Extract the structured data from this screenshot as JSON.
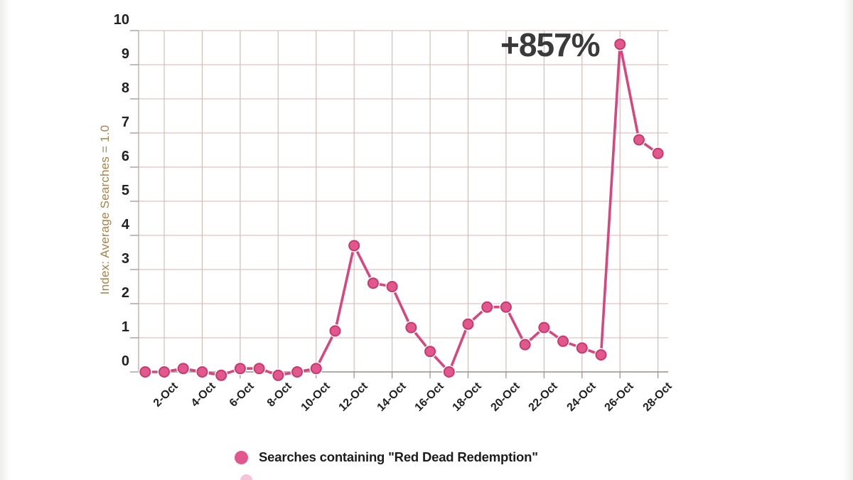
{
  "page": {
    "background": "#ffffff"
  },
  "chart_data": {
    "type": "line",
    "title": "",
    "xlabel": "",
    "ylabel": "Index: Average Searches = 1.0",
    "ylim": [
      0,
      10
    ],
    "yticks": [
      0,
      1,
      2,
      3,
      4,
      5,
      6,
      7,
      8,
      9,
      10
    ],
    "grid": true,
    "legend_position": "bottom",
    "x": [
      "1-Oct",
      "2-Oct",
      "3-Oct",
      "4-Oct",
      "5-Oct",
      "6-Oct",
      "7-Oct",
      "8-Oct",
      "9-Oct",
      "10-Oct",
      "11-Oct",
      "12-Oct",
      "13-Oct",
      "14-Oct",
      "15-Oct",
      "16-Oct",
      "17-Oct",
      "18-Oct",
      "19-Oct",
      "20-Oct",
      "21-Oct",
      "22-Oct",
      "23-Oct",
      "24-Oct",
      "25-Oct",
      "26-Oct",
      "27-Oct",
      "28-Oct"
    ],
    "xtick_labels": [
      "2-Oct",
      "4-Oct",
      "6-Oct",
      "8-Oct",
      "10-Oct",
      "12-Oct",
      "14-Oct",
      "16-Oct",
      "18-Oct",
      "20-Oct",
      "22-Oct",
      "24-Oct",
      "26-Oct",
      "28-Oct"
    ],
    "series": [
      {
        "name": "Searches containing \"Red Dead Redemption\"",
        "values": [
          0,
          0,
          0.1,
          0,
          -0.1,
          0.1,
          0.1,
          -0.1,
          0,
          0.1,
          1.2,
          3.7,
          2.6,
          2.5,
          1.3,
          0.6,
          0,
          1.4,
          1.9,
          1.9,
          0.8,
          1.3,
          0.9,
          0.7,
          0.5,
          9.6,
          6.8,
          6.4
        ]
      }
    ],
    "annotation": {
      "text": "+857%"
    }
  },
  "colors": {
    "line": "#d6477f",
    "dot_fill": "#e2578e",
    "dot_ring": "#c73a6d",
    "dot_halo": "#ffffff",
    "grid": "#d3b7b3",
    "axis": "#9b8d8a",
    "left_border": "#bfa7a3",
    "tick_text": "#222222",
    "annotation": "#3a3a3a",
    "ylabel": "#a6824c",
    "legend_text": "#1d1d1d"
  }
}
